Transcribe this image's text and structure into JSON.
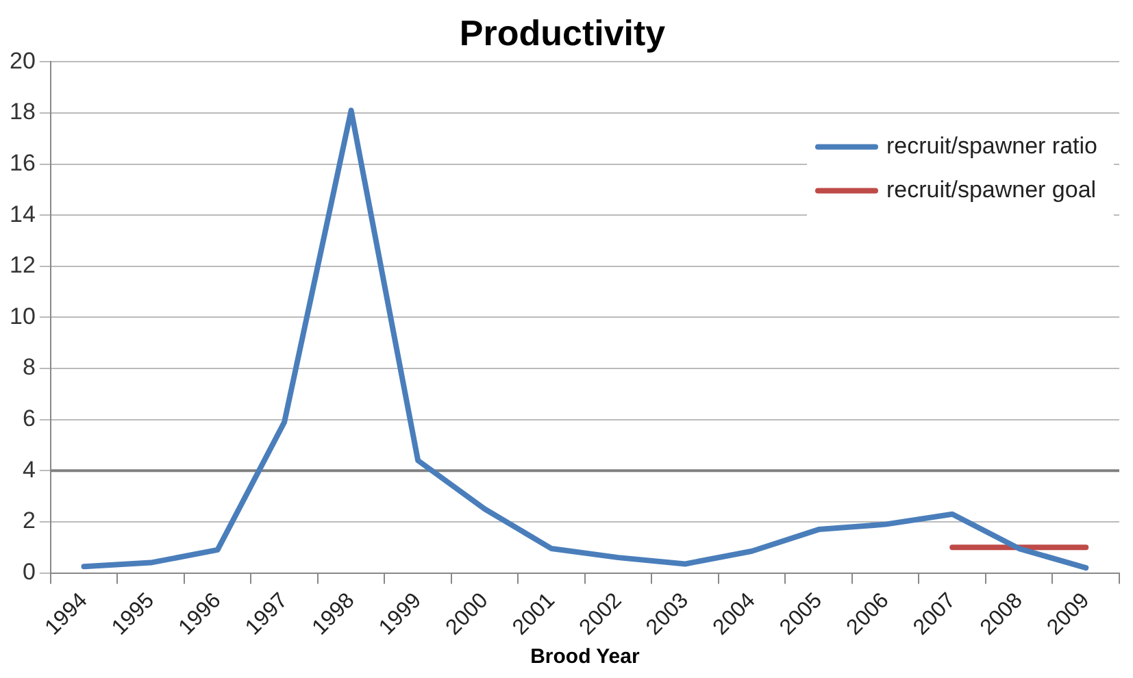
{
  "chart_data": {
    "type": "line",
    "title": "Productivity",
    "xlabel": "Brood Year",
    "categories": [
      "1994",
      "1995",
      "1996",
      "1997",
      "1998",
      "1999",
      "2000",
      "2001",
      "2002",
      "2003",
      "2004",
      "2005",
      "2006",
      "2007",
      "2008",
      "2009"
    ],
    "series": [
      {
        "name": "recruit/spawner ratio",
        "color": "#4a7ebb",
        "values": [
          0.25,
          0.4,
          0.9,
          5.9,
          18.1,
          4.4,
          2.5,
          0.95,
          0.6,
          0.35,
          0.85,
          1.7,
          1.9,
          2.3,
          0.95,
          0.2
        ]
      },
      {
        "name": "recruit/spawner goal",
        "color": "#be4b48",
        "values": [
          null,
          null,
          null,
          null,
          null,
          null,
          null,
          null,
          null,
          null,
          null,
          null,
          null,
          1,
          1,
          1
        ]
      }
    ],
    "ylim": [
      0,
      20
    ],
    "yticks": [
      0,
      2,
      4,
      6,
      8,
      10,
      12,
      14,
      16,
      18,
      20
    ],
    "grid": "y",
    "legend": "top right",
    "marker": "none",
    "line_style": "solid",
    "ref_lines": [
      {
        "axis": "y",
        "value": 4,
        "color": "#808080"
      }
    ]
  }
}
